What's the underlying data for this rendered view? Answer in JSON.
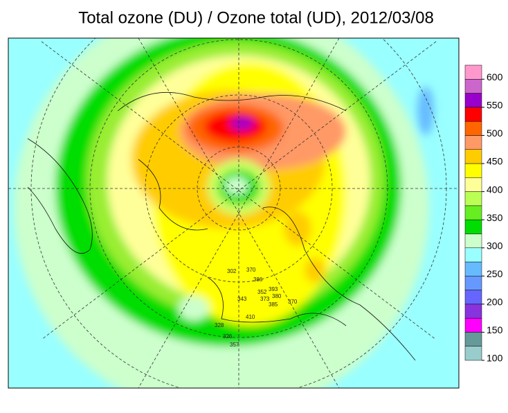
{
  "title": "Total ozone (DU) / Ozone total (UD), 2012/03/08",
  "colorbar": {
    "bins": [
      100,
      125,
      150,
      175,
      200,
      225,
      250,
      275,
      300,
      325,
      350,
      375,
      400,
      425,
      450,
      475,
      500,
      525,
      550,
      575,
      600,
      625
    ],
    "colors": [
      "#99cccc",
      "#669999",
      "#ff00ff",
      "#8833dd",
      "#6666ff",
      "#6699ff",
      "#66bbff",
      "#99ffff",
      "#ccffcc",
      "#00dd00",
      "#66ee22",
      "#bbff55",
      "#ffff99",
      "#ffff00",
      "#ffcc00",
      "#ff9966",
      "#ff6600",
      "#ff0000",
      "#9900cc",
      "#cc66cc",
      "#ff99cc"
    ],
    "ticks": [
      100,
      150,
      200,
      250,
      300,
      350,
      400,
      450,
      500,
      550,
      600
    ]
  },
  "stations": [
    "302",
    "370",
    "386",
    "343",
    "352",
    "393",
    "373",
    "380",
    "385",
    "370",
    "410",
    "326",
    "357",
    "328"
  ]
}
